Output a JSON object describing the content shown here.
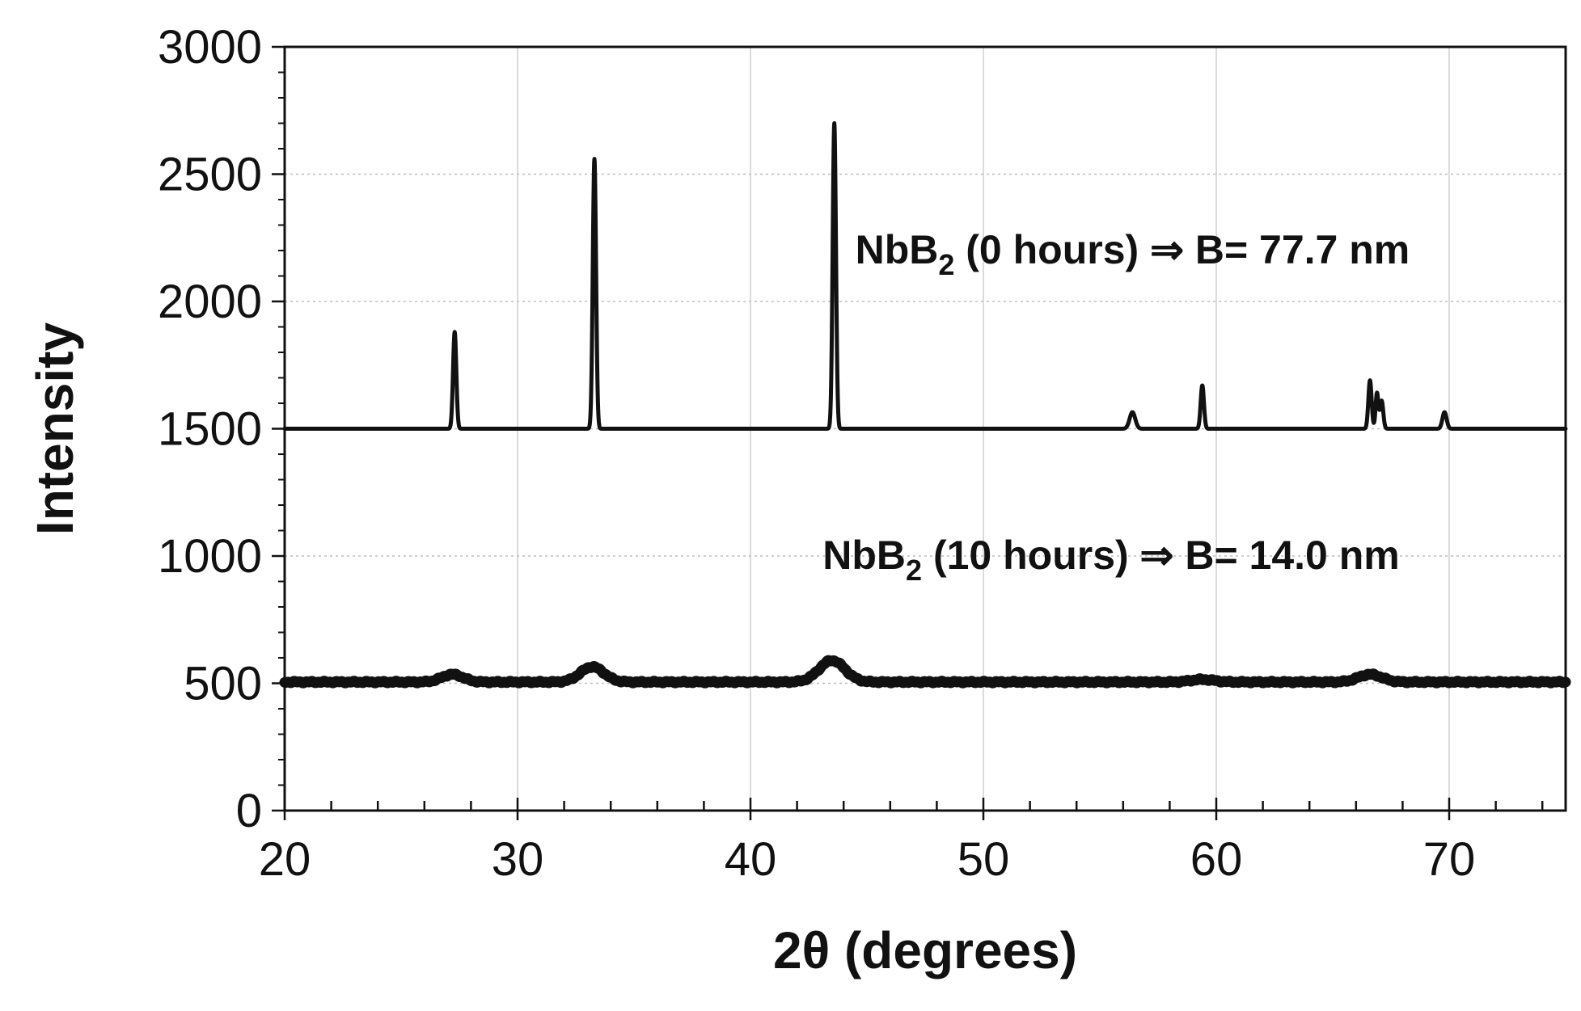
{
  "chart_data": {
    "type": "line",
    "title": "",
    "xlabel": "2θ (degrees)",
    "ylabel": "Intensity",
    "xlim": [
      20,
      75
    ],
    "ylim": [
      0,
      3000
    ],
    "x_ticks": [
      20,
      30,
      40,
      50,
      60,
      70
    ],
    "y_ticks": [
      0,
      500,
      1000,
      1500,
      2000,
      2500,
      3000
    ],
    "grid": true,
    "legend": "none",
    "line_color": "#111111",
    "series": [
      {
        "baseline": 1500,
        "peaks": [
          {
            "x": 27.3,
            "y": 1880
          },
          {
            "x": 33.3,
            "y": 2560
          },
          {
            "x": 43.6,
            "y": 2700
          },
          {
            "x": 56.4,
            "y": 1565
          },
          {
            "x": 59.4,
            "y": 1670
          },
          {
            "x": 66.6,
            "y": 1690
          },
          {
            "x": 66.9,
            "y": 1640
          },
          {
            "x": 67.1,
            "y": 1610
          },
          {
            "x": 69.8,
            "y": 1565
          }
        ]
      },
      {
        "baseline": 505,
        "peaks": [
          {
            "x": 27.2,
            "y": 535
          },
          {
            "x": 33.2,
            "y": 565
          },
          {
            "x": 43.5,
            "y": 590
          },
          {
            "x": 59.4,
            "y": 515
          },
          {
            "x": 66.6,
            "y": 535
          }
        ]
      }
    ],
    "annotations": [
      {
        "prefix": "NbB",
        "sub": "2",
        "suffix": " (0 hours) ⇒ B= 77.7 nm",
        "x": 44.5,
        "y": 2150
      },
      {
        "prefix": "NbB",
        "sub": "2",
        "suffix": " (10 hours) ⇒ B= 14.0 nm",
        "x": 43.1,
        "y": 950
      }
    ]
  }
}
